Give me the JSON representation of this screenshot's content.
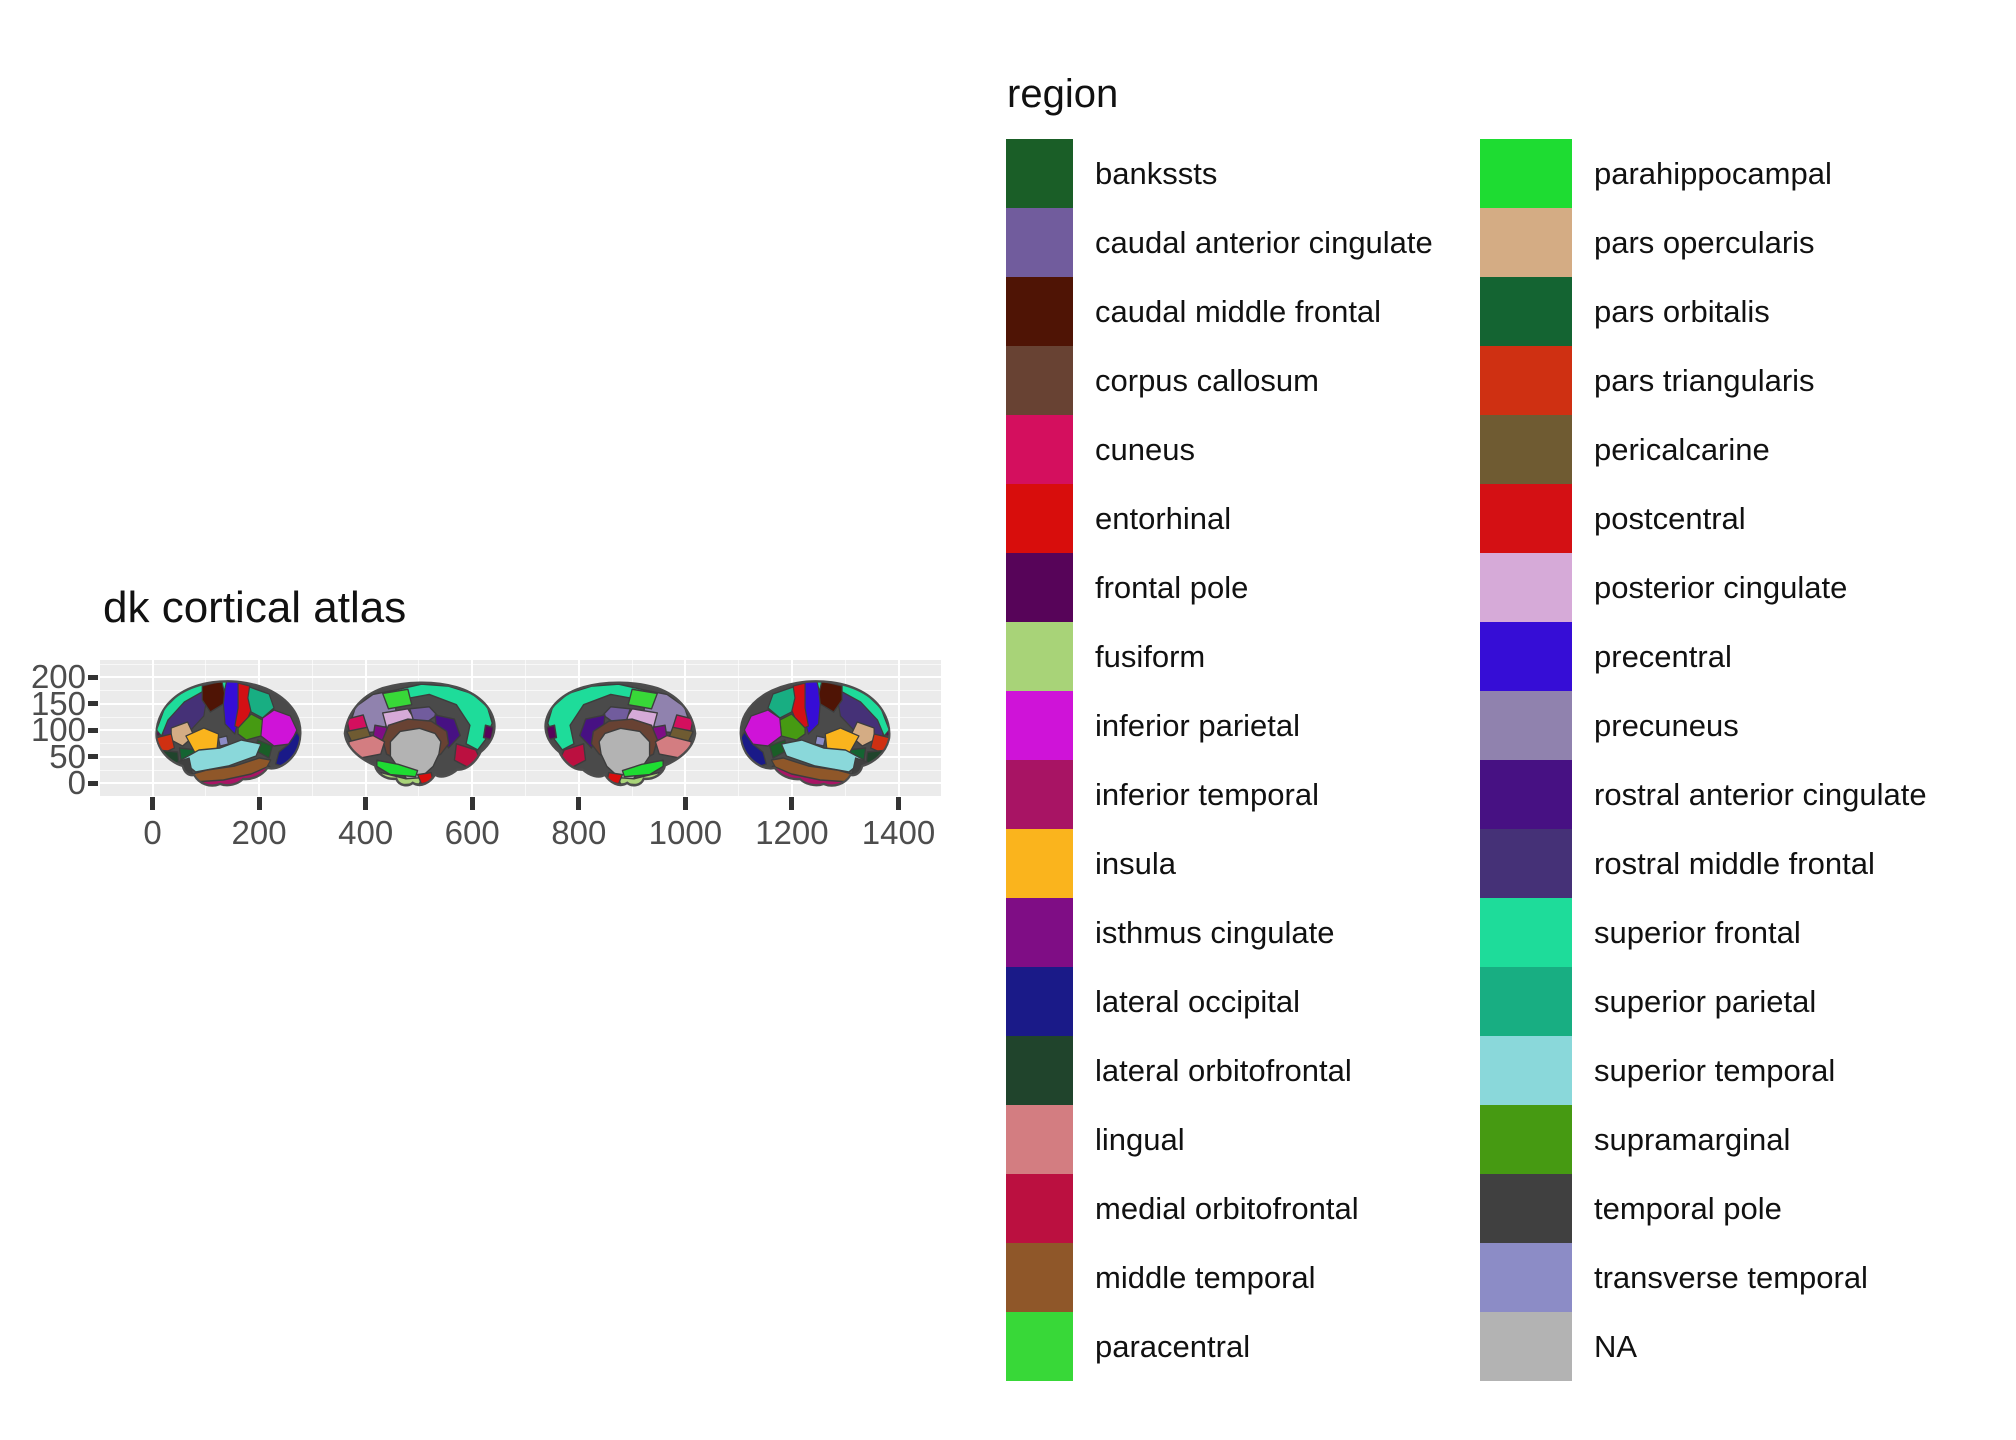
{
  "chart_data": {
    "type": "map",
    "title": "dk cortical atlas",
    "legend_title": "region",
    "xlabel": "",
    "ylabel": "",
    "x_ticks": [
      0,
      200,
      400,
      600,
      800,
      1000,
      1200,
      1400
    ],
    "y_ticks": [
      0,
      50,
      100,
      150,
      200
    ],
    "xlim": [
      -98,
      1480
    ],
    "ylim": [
      -25,
      232
    ],
    "grid": "on",
    "legend_position": "right, two columns",
    "panel_bg": "#ebebeb",
    "gridline_color": "#ffffff",
    "views": [
      "lateral left hemisphere",
      "medial left hemisphere",
      "medial right hemisphere",
      "lateral right hemisphere"
    ],
    "regions": [
      {
        "key": "bankssts",
        "label": "bankssts",
        "color": "#1a5e27"
      },
      {
        "key": "caudal_anterior_cingulate",
        "label": "caudal anterior cingulate",
        "color": "#715c9d"
      },
      {
        "key": "caudal_middle_frontal",
        "label": "caudal middle frontal",
        "color": "#4f1405"
      },
      {
        "key": "corpus_callosum",
        "label": "corpus callosum",
        "color": "#684233"
      },
      {
        "key": "cuneus",
        "label": "cuneus",
        "color": "#d40f5e"
      },
      {
        "key": "entorhinal",
        "label": "entorhinal",
        "color": "#d80d0c"
      },
      {
        "key": "frontal_pole",
        "label": "frontal pole",
        "color": "#570459"
      },
      {
        "key": "fusiform",
        "label": "fusiform",
        "color": "#a8d378"
      },
      {
        "key": "inferior_parietal",
        "label": "inferior parietal",
        "color": "#cf13d8"
      },
      {
        "key": "inferior_temporal",
        "label": "inferior temporal",
        "color": "#a81464"
      },
      {
        "key": "insula",
        "label": "insula",
        "color": "#fab41d"
      },
      {
        "key": "isthmus_cingulate",
        "label": "isthmus cingulate",
        "color": "#7f0d85"
      },
      {
        "key": "lateral_occipital",
        "label": "lateral occipital",
        "color": "#1a1a88"
      },
      {
        "key": "lateral_orbitofrontal",
        "label": "lateral orbitofrontal",
        "color": "#20442c"
      },
      {
        "key": "lingual",
        "label": "lingual",
        "color": "#d37d81"
      },
      {
        "key": "medial_orbitofrontal",
        "label": "medial orbitofrontal",
        "color": "#bb1040"
      },
      {
        "key": "middle_temporal",
        "label": "middle temporal",
        "color": "#8f5729"
      },
      {
        "key": "paracentral",
        "label": "paracentral",
        "color": "#38d838"
      },
      {
        "key": "parahippocampal",
        "label": "parahippocampal",
        "color": "#1edc32"
      },
      {
        "key": "pars_opercularis",
        "label": "pars opercularis",
        "color": "#d4ac84"
      },
      {
        "key": "pars_orbitalis",
        "label": "pars orbitalis",
        "color": "#146432"
      },
      {
        "key": "pars_triangularis",
        "label": "pars triangularis",
        "color": "#cf3012"
      },
      {
        "key": "pericalcarine",
        "label": "pericalcarine",
        "color": "#6f5b32"
      },
      {
        "key": "postcentral",
        "label": "postcentral",
        "color": "#d41014"
      },
      {
        "key": "posterior_cingulate",
        "label": "posterior cingulate",
        "color": "#d6aad8"
      },
      {
        "key": "precentral",
        "label": "precentral",
        "color": "#360dd6"
      },
      {
        "key": "precuneus",
        "label": "precuneus",
        "color": "#9082ae"
      },
      {
        "key": "rostral_anterior_cingulate",
        "label": "rostral anterior cingulate",
        "color": "#471183"
      },
      {
        "key": "rostral_middle_frontal",
        "label": "rostral middle frontal",
        "color": "#453177"
      },
      {
        "key": "superior_frontal",
        "label": "superior frontal",
        "color": "#1edc9a"
      },
      {
        "key": "superior_parietal",
        "label": "superior parietal",
        "color": "#18ae82"
      },
      {
        "key": "superior_temporal",
        "label": "superior temporal",
        "color": "#8ad8da"
      },
      {
        "key": "supramarginal",
        "label": "supramarginal",
        "color": "#469a12"
      },
      {
        "key": "temporal_pole",
        "label": "temporal pole",
        "color": "#404040"
      },
      {
        "key": "transverse_temporal",
        "label": "transverse temporal",
        "color": "#8c8cc6"
      },
      {
        "key": "NA",
        "label": "NA",
        "color": "#b3b3b3"
      }
    ]
  }
}
